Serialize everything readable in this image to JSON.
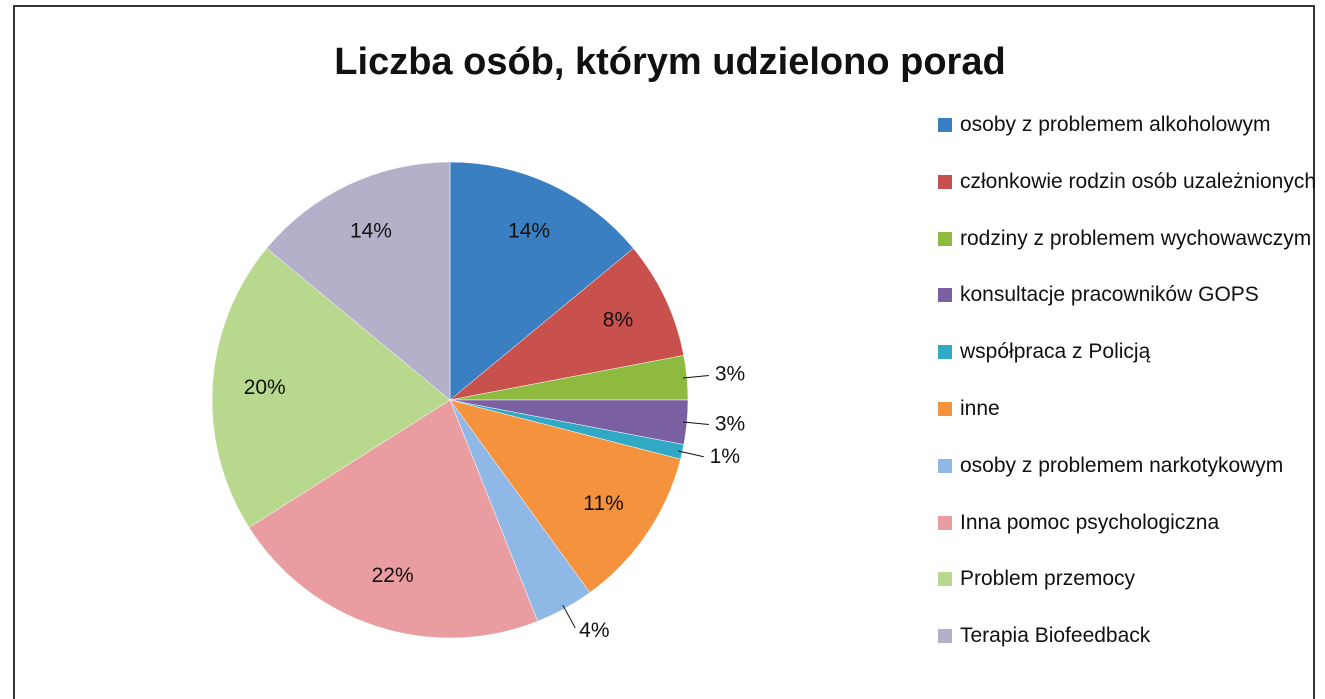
{
  "chart_data": {
    "type": "pie",
    "title": "Liczba osób, którym udzielono porad",
    "categories": [
      "osoby z problemem alkoholowym",
      "członkowie rodzin osób uzależnionych",
      "rodziny z problemem wychowawczym",
      "konsultacje pracowników GOPS",
      "współpraca z Policją",
      "inne",
      "osoby z problemem narkotykowym",
      "Inna pomoc psychologiczna",
      "Problem przemocy",
      "Terapia Biofeedback"
    ],
    "values": [
      14,
      8,
      3,
      3,
      1,
      11,
      4,
      22,
      20,
      14
    ],
    "value_labels": [
      "14%",
      "8%",
      "3%",
      "3%",
      "1%",
      "11%",
      "4%",
      "22%",
      "20%",
      "14%"
    ],
    "colors": [
      "#3a7fc1",
      "#c8504d",
      "#8dba3f",
      "#7a5fa2",
      "#2fa9c4",
      "#f5923e",
      "#8fb8e6",
      "#ea9da0",
      "#b8d88e",
      "#b4b0c9"
    ],
    "legend": "right"
  }
}
